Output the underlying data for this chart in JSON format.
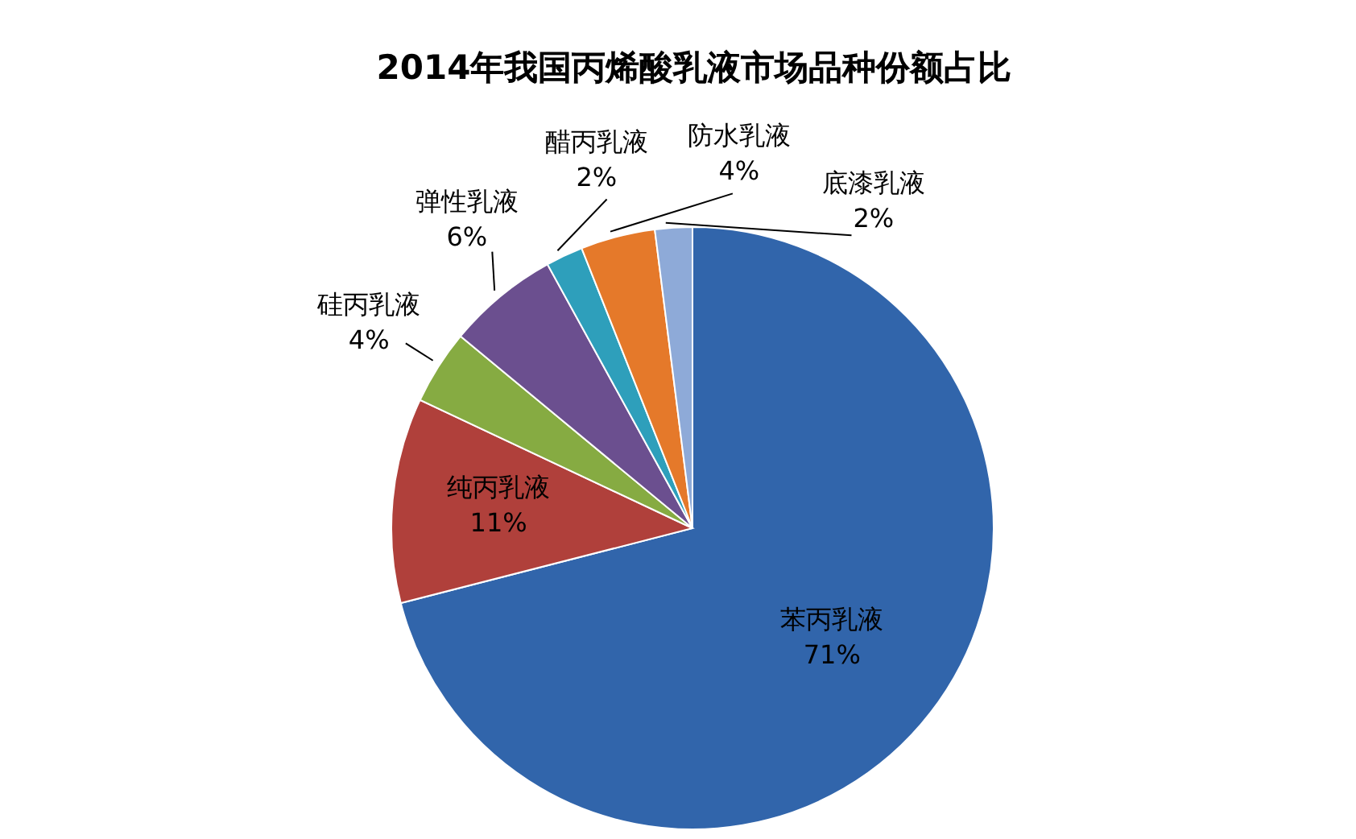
{
  "chart_data": {
    "type": "pie",
    "title": "2014年我国丙烯酸乳液市场品种份额占比",
    "categories": [
      "苯丙乳液",
      "纯丙乳液",
      "硅丙乳液",
      "弹性乳液",
      "醋丙乳液",
      "防水乳液",
      "底漆乳液"
    ],
    "values": [
      71,
      11,
      4,
      6,
      2,
      4,
      2
    ],
    "value_labels": [
      "71%",
      "11%",
      "4%",
      "6%",
      "2%",
      "4%",
      "2%"
    ],
    "colors": [
      "#3165ab",
      "#b0403b",
      "#86ab42",
      "#6b4f8f",
      "#2e9fbb",
      "#e5792a",
      "#8eaad8"
    ],
    "legend": false
  }
}
